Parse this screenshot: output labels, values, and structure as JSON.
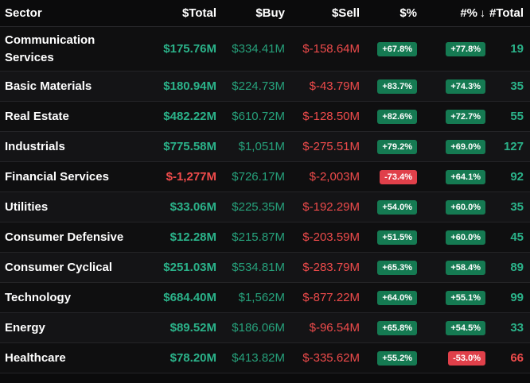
{
  "headers": {
    "sector": "Sector",
    "total": "$Total",
    "buy": "$Buy",
    "sell": "$Sell",
    "pct": "$%",
    "npct": "#%",
    "sort_arrow": "↓",
    "ntotal": "#Total"
  },
  "rows": [
    {
      "sector": "Communication Services",
      "total": "$175.76M",
      "buy": "$334.41M",
      "sell": "$-158.64M",
      "pct": "+67.8%",
      "npct": "+77.8%",
      "ntotal": "19"
    },
    {
      "sector": "Basic Materials",
      "total": "$180.94M",
      "buy": "$224.73M",
      "sell": "$-43.79M",
      "pct": "+83.7%",
      "npct": "+74.3%",
      "ntotal": "35"
    },
    {
      "sector": "Real Estate",
      "total": "$482.22M",
      "buy": "$610.72M",
      "sell": "$-128.50M",
      "pct": "+82.6%",
      "npct": "+72.7%",
      "ntotal": "55"
    },
    {
      "sector": "Industrials",
      "total": "$775.58M",
      "buy": "$1,051M",
      "sell": "$-275.51M",
      "pct": "+79.2%",
      "npct": "+69.0%",
      "ntotal": "127"
    },
    {
      "sector": "Financial Services",
      "total": "$-1,277M",
      "buy": "$726.17M",
      "sell": "$-2,003M",
      "pct": "-73.4%",
      "npct": "+64.1%",
      "ntotal": "92"
    },
    {
      "sector": "Utilities",
      "total": "$33.06M",
      "buy": "$225.35M",
      "sell": "$-192.29M",
      "pct": "+54.0%",
      "npct": "+60.0%",
      "ntotal": "35"
    },
    {
      "sector": "Consumer Defensive",
      "total": "$12.28M",
      "buy": "$215.87M",
      "sell": "$-203.59M",
      "pct": "+51.5%",
      "npct": "+60.0%",
      "ntotal": "45"
    },
    {
      "sector": "Consumer Cyclical",
      "total": "$251.03M",
      "buy": "$534.81M",
      "sell": "$-283.79M",
      "pct": "+65.3%",
      "npct": "+58.4%",
      "ntotal": "89"
    },
    {
      "sector": "Technology",
      "total": "$684.40M",
      "buy": "$1,562M",
      "sell": "$-877.22M",
      "pct": "+64.0%",
      "npct": "+55.1%",
      "ntotal": "99"
    },
    {
      "sector": "Energy",
      "total": "$89.52M",
      "buy": "$186.06M",
      "sell": "$-96.54M",
      "pct": "+65.8%",
      "npct": "+54.5%",
      "ntotal": "33"
    },
    {
      "sector": "Healthcare",
      "total": "$78.20M",
      "buy": "$413.82M",
      "sell": "$-335.62M",
      "pct": "+55.2%",
      "npct": "-53.0%",
      "ntotal": "66"
    }
  ],
  "colors": {
    "positive_text": "#26a17b",
    "negative_text": "#ef4b4b",
    "positive_badge": "#157a52",
    "negative_badge": "#e0404a",
    "background": "#0b0b0c"
  }
}
